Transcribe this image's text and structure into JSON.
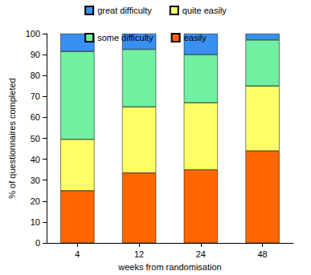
{
  "chart_data": {
    "type": "bar",
    "stacked": true,
    "xlabel": "weeks from randomisation",
    "ylabel": "% of questionnaires completed",
    "categories": [
      "4",
      "12",
      "24",
      "48"
    ],
    "series": [
      {
        "name": "easily",
        "color": "#ff6600",
        "values": [
          25,
          33.5,
          35,
          44
        ]
      },
      {
        "name": "quite easily",
        "color": "#ffff66",
        "values": [
          24.5,
          31.5,
          32,
          31
        ]
      },
      {
        "name": "some difficulty",
        "color": "#70f0a0",
        "values": [
          42,
          27.5,
          23,
          22
        ]
      },
      {
        "name": "great difficulty",
        "color": "#3a90f0",
        "values": [
          8.5,
          7.5,
          10,
          3
        ]
      }
    ],
    "ylim": [
      0,
      100
    ],
    "yticks": [
      0,
      10,
      20,
      30,
      40,
      50,
      60,
      70,
      80,
      90,
      100
    ],
    "grid": false,
    "legend": "top"
  }
}
